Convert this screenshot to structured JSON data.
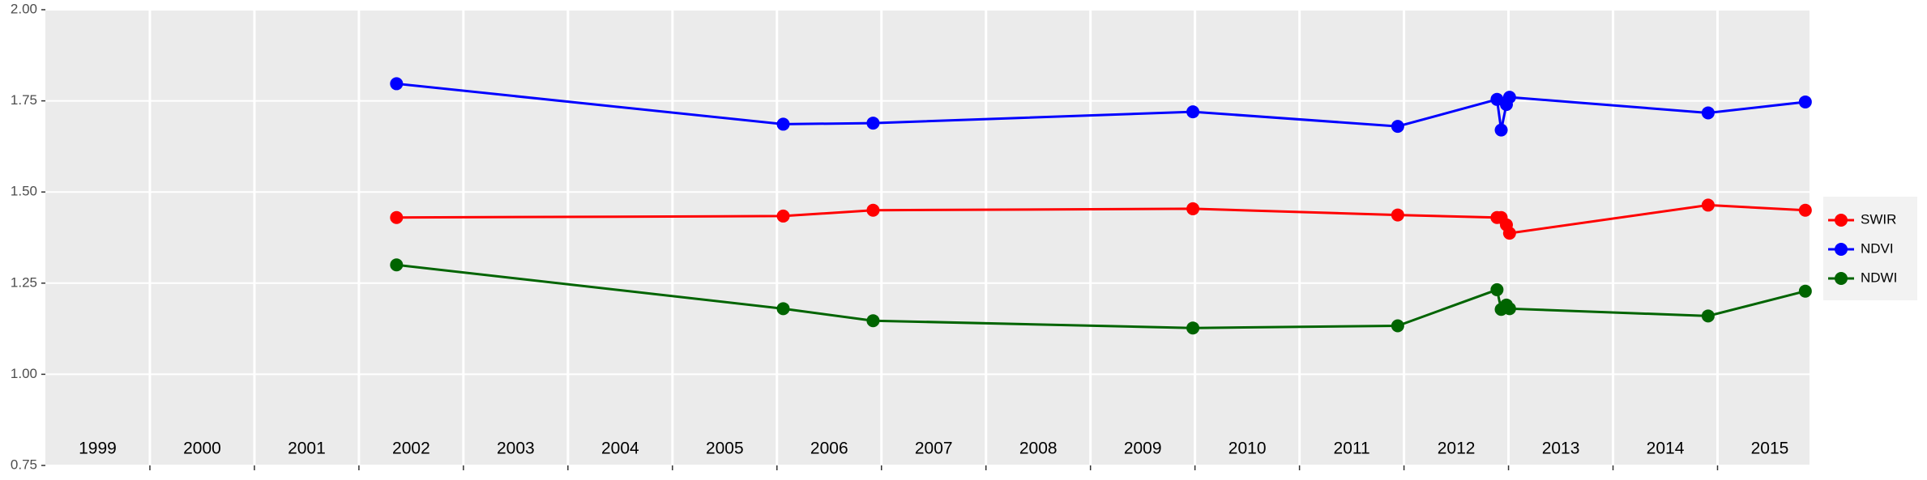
{
  "chart_data": {
    "type": "line",
    "x": [
      2002.36,
      2006.06,
      2006.92,
      2009.98,
      2011.94,
      2012.89,
      2012.93,
      2012.98,
      2013.01,
      2014.91,
      2015.84
    ],
    "series": [
      {
        "name": "SWIR",
        "color": "#FF0000",
        "values": [
          1.43,
          1.434,
          1.45,
          1.454,
          1.437,
          1.43,
          1.43,
          1.41,
          1.387,
          1.464,
          1.45
        ]
      },
      {
        "name": "NDVI",
        "color": "#0000FF",
        "values": [
          1.797,
          1.686,
          1.689,
          1.72,
          1.68,
          1.754,
          1.67,
          1.74,
          1.76,
          1.717,
          1.747
        ]
      },
      {
        "name": "NDWI",
        "color": "#006400",
        "values": [
          1.3,
          1.18,
          1.147,
          1.127,
          1.133,
          1.232,
          1.178,
          1.19,
          1.18,
          1.16,
          1.228
        ]
      }
    ],
    "xlim": [
      1999.0,
      2015.88
    ],
    "xticks": [
      2000,
      2001,
      2002,
      2003,
      2004,
      2005,
      2006,
      2007,
      2008,
      2009,
      2010,
      2011,
      2012,
      2013,
      2014,
      2015
    ],
    "x_labels": [
      {
        "value": 1999.5,
        "label": "1999"
      },
      {
        "value": 2000.5,
        "label": "2000"
      },
      {
        "value": 2001.5,
        "label": "2001"
      },
      {
        "value": 2002.5,
        "label": "2002"
      },
      {
        "value": 2003.5,
        "label": "2003"
      },
      {
        "value": 2004.5,
        "label": "2004"
      },
      {
        "value": 2005.5,
        "label": "2005"
      },
      {
        "value": 2006.5,
        "label": "2006"
      },
      {
        "value": 2007.5,
        "label": "2007"
      },
      {
        "value": 2008.5,
        "label": "2008"
      },
      {
        "value": 2009.5,
        "label": "2009"
      },
      {
        "value": 2010.5,
        "label": "2010"
      },
      {
        "value": 2011.5,
        "label": "2011"
      },
      {
        "value": 2012.5,
        "label": "2012"
      },
      {
        "value": 2013.5,
        "label": "2013"
      },
      {
        "value": 2014.5,
        "label": "2014"
      },
      {
        "value": 2015.5,
        "label": "2015"
      }
    ],
    "ylim": [
      0.75,
      2.0
    ],
    "yticks": [
      0.75,
      {
        "value": 1.0,
        "label": "1.00"
      },
      1.25,
      {
        "value": 1.5,
        "label": "1.50"
      },
      1.75,
      {
        "value": 2.0,
        "label": "2.00"
      }
    ],
    "grid": true
  }
}
